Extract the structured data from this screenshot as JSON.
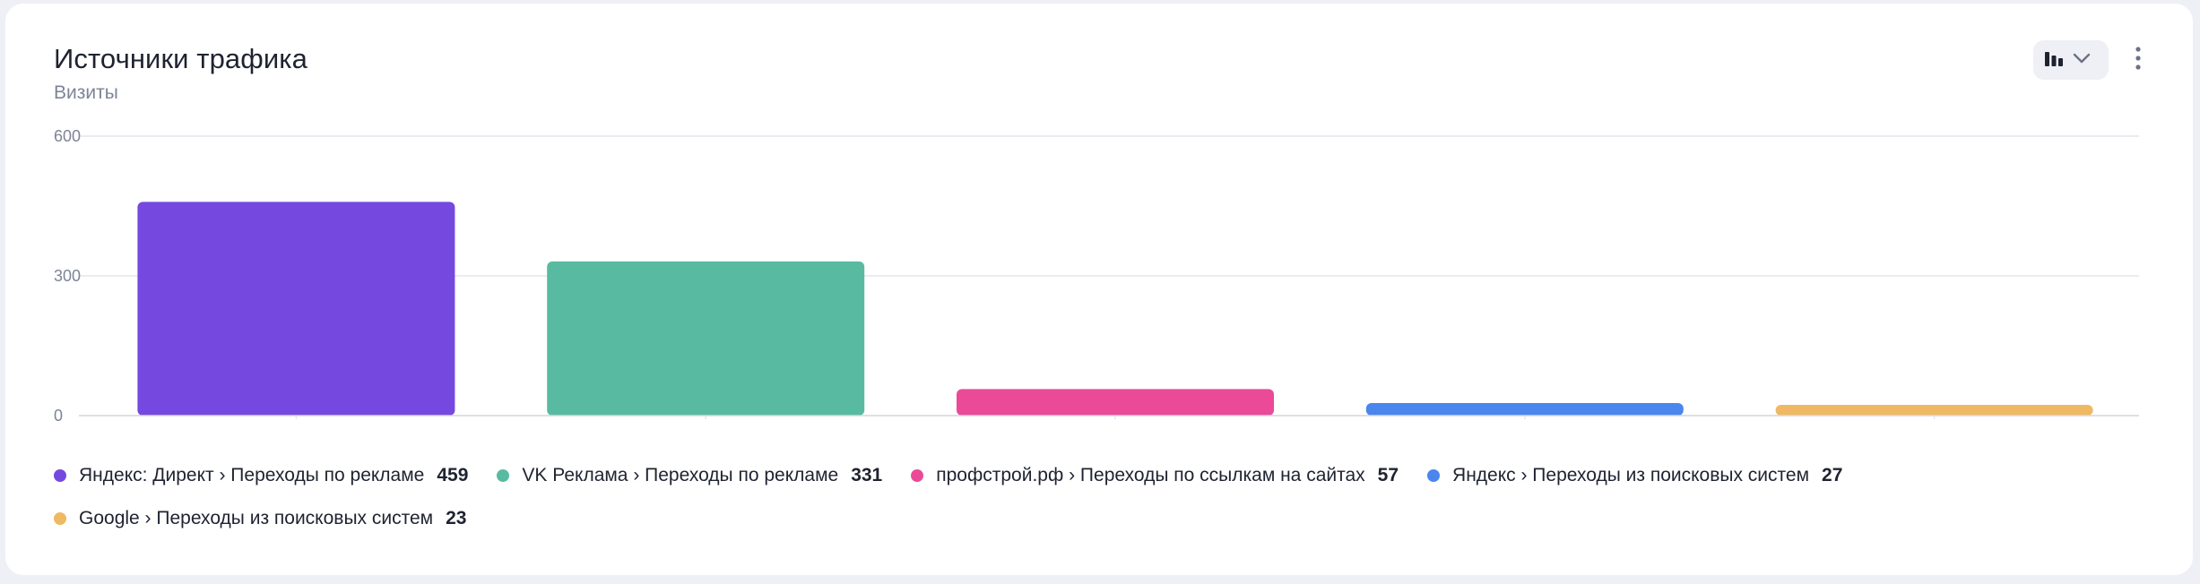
{
  "card": {
    "title": "Источники трафика",
    "subtitle": "Визиты",
    "chart_type_toggle_icon": "bar-chart-icon",
    "dropdown_icon": "chevron-down-icon",
    "menu_icon": "kebab-menu-icon"
  },
  "colors": {
    "grid": "#e4e6ec",
    "tick_text": "#7c8497",
    "icon": "#1f2330"
  },
  "chart_data": {
    "type": "bar",
    "title": "Источники трафика",
    "subtitle": "Визиты",
    "ylim": [
      0,
      600
    ],
    "yticks": [
      "0",
      "300",
      "600"
    ],
    "grid": true,
    "legend_position": "bottom",
    "categories": [
      "Яндекс: Директ › Переходы по рекламе",
      "VK Реклама › Переходы по рекламе",
      "профстрой.рф › Переходы по ссылкам на сайтах",
      "Яндекс › Переходы из поисковых систем",
      "Google › Переходы из поисковых систем"
    ],
    "values": [
      459,
      331,
      57,
      27,
      23
    ],
    "value_labels": [
      "459",
      "331",
      "57",
      "27",
      "23"
    ],
    "colors": [
      "#7549e0",
      "#58bba1",
      "#ea4a98",
      "#4a86ec",
      "#efb862"
    ]
  }
}
